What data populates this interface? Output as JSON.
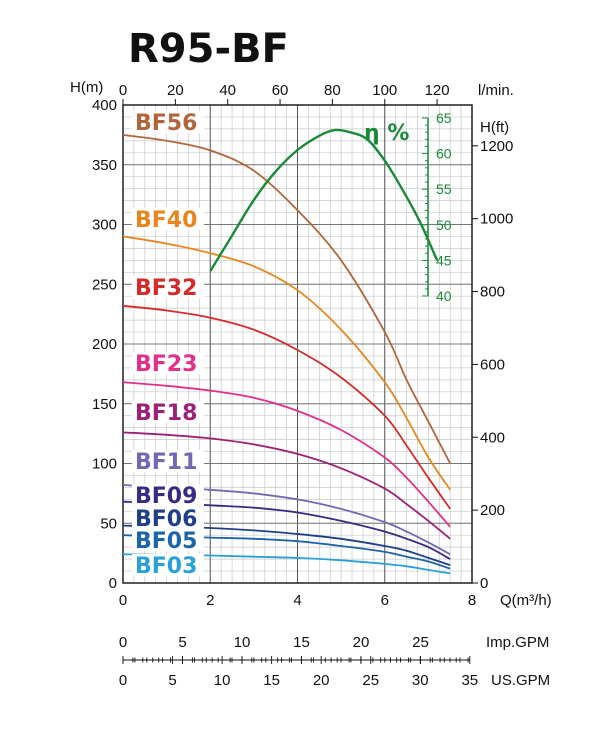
{
  "chart_data": {
    "type": "line",
    "title": "R95-BF",
    "x_axis": {
      "label": "Q(m³/h)",
      "range": [
        0,
        8
      ],
      "ticks": [
        "0",
        "2",
        "4",
        "6",
        "8"
      ]
    },
    "x_top_axis": {
      "label": "l/min.",
      "range": [
        0,
        133.33
      ],
      "ticks": [
        "0",
        "20",
        "40",
        "60",
        "80",
        "100",
        "120"
      ]
    },
    "y_axis": {
      "label": "H(m)",
      "range": [
        0,
        400
      ],
      "ticks": [
        "0",
        "50",
        "100",
        "150",
        "200",
        "250",
        "300",
        "350",
        "400"
      ]
    },
    "y_right_axis": {
      "label": "H(ft)",
      "range": [
        0,
        1312
      ],
      "ticks": [
        "0",
        "200",
        "400",
        "600",
        "800",
        "1000",
        "1200"
      ]
    },
    "efficiency_axis": {
      "label": "η %",
      "range": [
        40,
        65
      ],
      "ticks": [
        "40",
        "45",
        "50",
        "55",
        "60",
        "65"
      ]
    },
    "imp_gpm_axis": {
      "label": "Imp.GPM",
      "range": [
        0,
        29.33
      ],
      "ticks": [
        "0",
        "5",
        "10",
        "15",
        "20",
        "25"
      ]
    },
    "us_gpm_axis": {
      "label": "US.GPM",
      "range": [
        0,
        35.22
      ],
      "ticks": [
        "0",
        "5",
        "10",
        "15",
        "20",
        "25",
        "30",
        "35"
      ]
    },
    "grid": true,
    "series": [
      {
        "name": "BF56",
        "color": "#b0663a",
        "x": [
          0,
          1,
          2,
          3,
          4,
          5,
          6,
          6.5,
          7,
          7.5
        ],
        "y": [
          375,
          370,
          362,
          345,
          312,
          270,
          210,
          170,
          135,
          100
        ]
      },
      {
        "name": "BF40",
        "color": "#e7861e",
        "x": [
          0,
          1,
          2,
          3,
          4,
          5,
          6,
          6.5,
          7,
          7.5
        ],
        "y": [
          290,
          284,
          276,
          265,
          245,
          212,
          168,
          138,
          105,
          78
        ]
      },
      {
        "name": "BF32",
        "color": "#d42a2a",
        "x": [
          0,
          1,
          2,
          3,
          4,
          5,
          6,
          6.5,
          7,
          7.5
        ],
        "y": [
          232,
          228,
          222,
          212,
          195,
          172,
          140,
          115,
          88,
          62
        ]
      },
      {
        "name": "BF23",
        "color": "#e0308a",
        "x": [
          0,
          1,
          2,
          3,
          4,
          5,
          6,
          6.5,
          7,
          7.5
        ],
        "y": [
          168,
          165,
          161,
          155,
          144,
          128,
          105,
          88,
          68,
          47
        ]
      },
      {
        "name": "BF18",
        "color": "#9c2078",
        "x": [
          0,
          1,
          2,
          3,
          4,
          5,
          6,
          6.5,
          7,
          7.5
        ],
        "y": [
          126,
          124,
          121,
          116,
          108,
          96,
          79,
          66,
          52,
          37
        ]
      },
      {
        "name": "BF11",
        "color": "#7467b4",
        "x": [
          0,
          1,
          2,
          3,
          4,
          5,
          6,
          6.5,
          7,
          7.5
        ],
        "y": [
          82,
          80,
          78,
          75,
          70,
          62,
          51,
          43,
          34,
          24
        ]
      },
      {
        "name": "BF09",
        "color": "#3a2a82",
        "x": [
          0,
          1,
          2,
          3,
          4,
          5,
          6,
          6.5,
          7,
          7.5
        ],
        "y": [
          68,
          67,
          65,
          63,
          59,
          52,
          43,
          37,
          30,
          20
        ]
      },
      {
        "name": "BF06",
        "color": "#1f3f86",
        "x": [
          0,
          1,
          2,
          3,
          4,
          5,
          6,
          6.5,
          7,
          7.5
        ],
        "y": [
          48,
          47,
          46,
          44,
          41,
          37,
          31,
          27,
          21,
          15
        ]
      },
      {
        "name": "BF05",
        "color": "#1d64a8",
        "x": [
          0,
          1,
          2,
          3,
          4,
          5,
          6,
          6.5,
          7,
          7.5
        ],
        "y": [
          40,
          39,
          38,
          37,
          35,
          31,
          26,
          22,
          18,
          12
        ]
      },
      {
        "name": "BF03",
        "color": "#2aa0d8",
        "x": [
          0,
          1,
          2,
          3,
          4,
          5,
          6,
          6.5,
          7,
          7.5
        ],
        "y": [
          24,
          23.5,
          23,
          22,
          21,
          19,
          16,
          14,
          11,
          8
        ]
      }
    ],
    "efficiency": {
      "name": "η %",
      "color": "#1a8a3a",
      "x": [
        2,
        2.5,
        3,
        3.5,
        4,
        4.5,
        4.85,
        5.2,
        5.6,
        6,
        6.4,
        6.8,
        7.2
      ],
      "y": [
        43.5,
        48.5,
        53.5,
        57.5,
        60.5,
        62.5,
        63.3,
        63.0,
        62.0,
        59.0,
        55.0,
        50.5,
        45.0
      ]
    }
  }
}
